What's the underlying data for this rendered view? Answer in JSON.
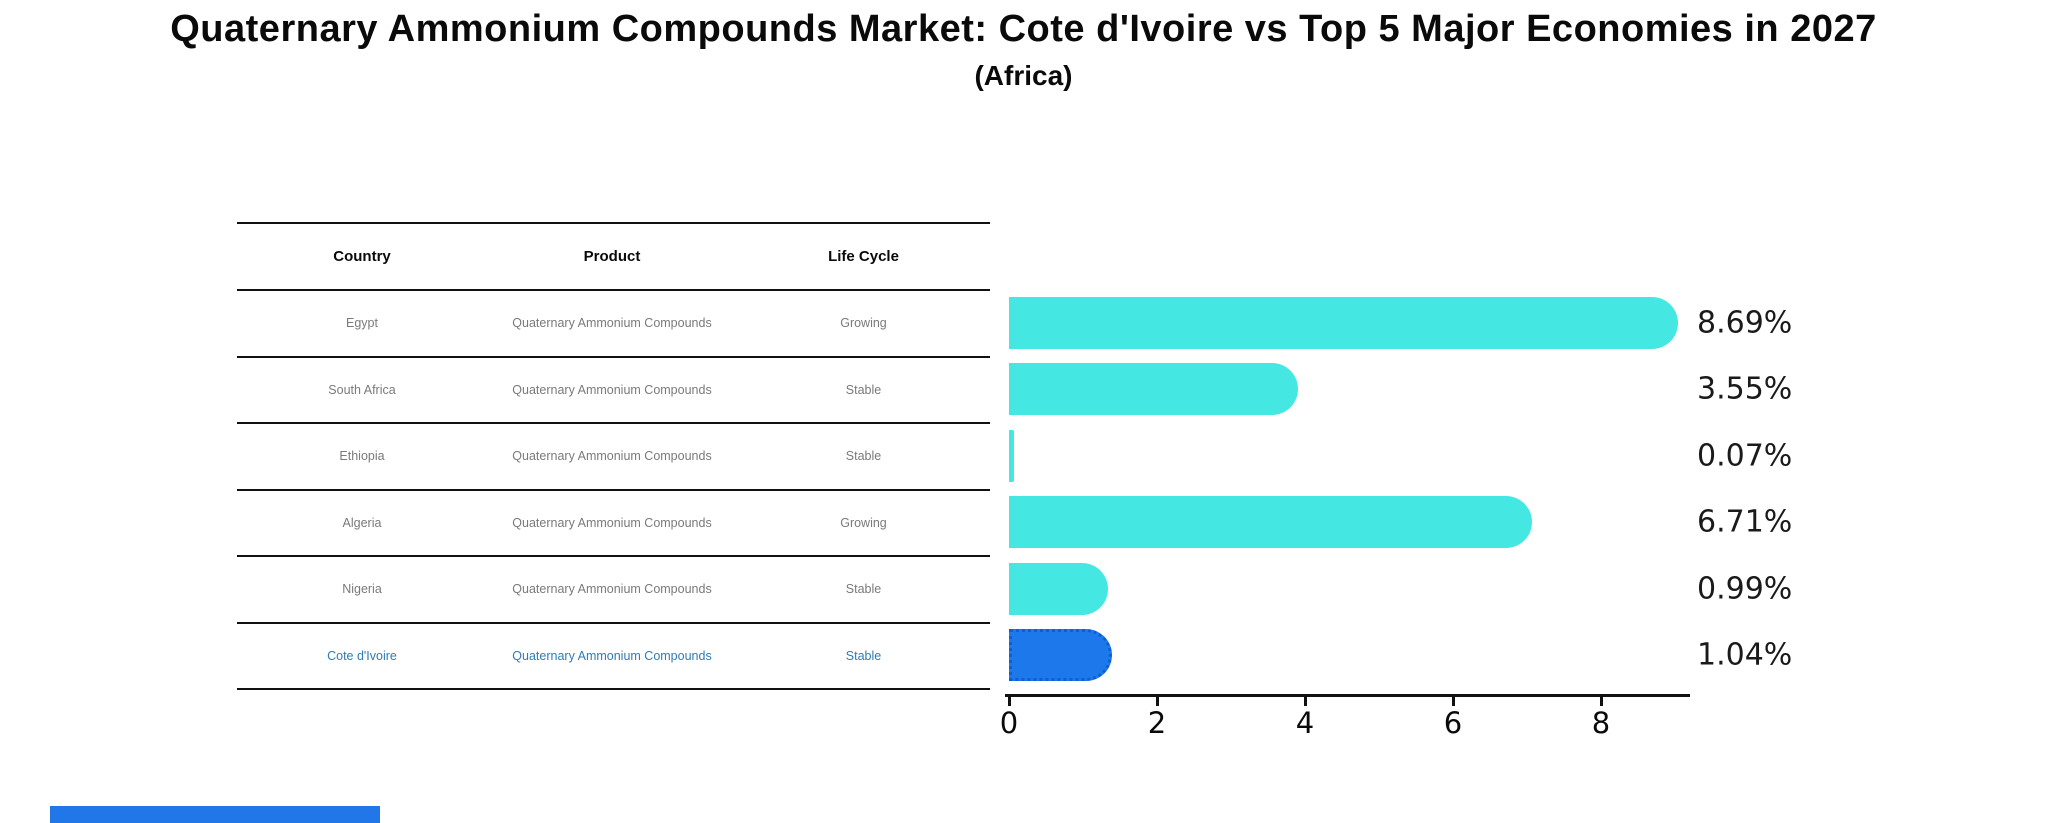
{
  "title": "Quaternary Ammonium Compounds Market: Cote d'Ivoire vs Top 5 Major Economies in 2027",
  "subtitle": "(Africa)",
  "table": {
    "headers": [
      "Country",
      "Product",
      "Life Cycle"
    ],
    "rows": [
      {
        "country": "Egypt",
        "product": "Quaternary Ammonium Compounds",
        "life_cycle": "Growing",
        "highlighted": false
      },
      {
        "country": "South Africa",
        "product": "Quaternary Ammonium Compounds",
        "life_cycle": "Stable",
        "highlighted": false
      },
      {
        "country": "Ethiopia",
        "product": "Quaternary Ammonium Compounds",
        "life_cycle": "Stable",
        "highlighted": false
      },
      {
        "country": "Algeria",
        "product": "Quaternary Ammonium Compounds",
        "life_cycle": "Growing",
        "highlighted": false
      },
      {
        "country": "Nigeria",
        "product": "Quaternary Ammonium Compounds",
        "life_cycle": "Stable",
        "highlighted": false
      },
      {
        "country": "Cote d'Ivoire",
        "product": "Quaternary Ammonium Compounds",
        "life_cycle": "Stable",
        "highlighted": true
      }
    ]
  },
  "chart_data": {
    "type": "bar",
    "orientation": "horizontal",
    "title": "Quaternary Ammonium Compounds Market: Cote d'Ivoire vs Top 5 Major Economies in 2027 (Africa)",
    "categories": [
      "Egypt",
      "South Africa",
      "Ethiopia",
      "Algeria",
      "Nigeria",
      "Cote d'Ivoire"
    ],
    "values": [
      8.69,
      3.55,
      0.07,
      6.71,
      0.99,
      1.04
    ],
    "labels": [
      "8.69%",
      "3.55%",
      "0.07%",
      "6.71%",
      "0.99%",
      "1.04%"
    ],
    "x_ticks": [
      0,
      2,
      4,
      6,
      8
    ],
    "xlim": [
      0,
      9.2
    ],
    "xlabel": "",
    "ylabel": "",
    "grid": false,
    "legend": "none",
    "bar_color": "#45e7e3",
    "highlight_color": "#1d78eb",
    "highlight_index": 5
  },
  "colors": {
    "background": "#ffffff",
    "table_line": "#111111",
    "row_text": "#7a7a7a",
    "highlight_row_text": "#2e7cb8",
    "accent_strip": "#2277e8"
  }
}
